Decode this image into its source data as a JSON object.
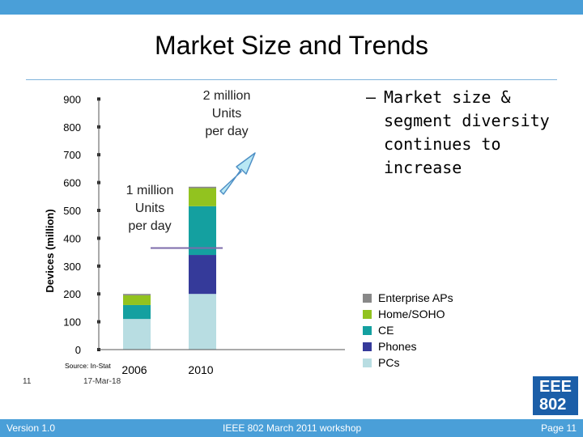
{
  "slide": {
    "title": "Market Size and Trends",
    "bullet_dash": "–",
    "bullet_text": "Market size &\nsegment diversity\ncontinues to\nincrease",
    "page_number": "11",
    "date": "17-Mar-18",
    "logo_text": [
      "EEE",
      "802"
    ],
    "footer": {
      "left": "Version 1.0",
      "center": "IEEE 802 March 2011 workshop",
      "right": "Page 11"
    },
    "colors": {
      "bar_accent": "#4a9fd8",
      "logo": "#1b5ea8"
    }
  },
  "chart_data": {
    "type": "bar",
    "stacked": true,
    "ylabel": "Devices (million)",
    "ylim": [
      0,
      900
    ],
    "yticks": [
      0,
      100,
      200,
      300,
      400,
      500,
      600,
      700,
      800,
      900
    ],
    "categories": [
      "2006",
      "2010"
    ],
    "series": [
      {
        "name": "PCs",
        "color": "#b8dde2",
        "values": [
          110,
          200
        ]
      },
      {
        "name": "Phones",
        "color": "#353a9a",
        "values": [
          0,
          140
        ]
      },
      {
        "name": "CE",
        "color": "#14a0a0",
        "values": [
          50,
          175
        ]
      },
      {
        "name": "Home/SOHO",
        "color": "#92c31f",
        "values": [
          35,
          65
        ]
      },
      {
        "name": "Enterprise APs",
        "color": "#888888",
        "values": [
          5,
          5
        ]
      }
    ],
    "reference_value": 365,
    "source": "Source: In-Stat",
    "annotations": [
      {
        "id": "one_million",
        "text": "1 million\nUnits\nper day"
      },
      {
        "id": "two_million",
        "text": "2 million\nUnits\nper day"
      }
    ]
  }
}
